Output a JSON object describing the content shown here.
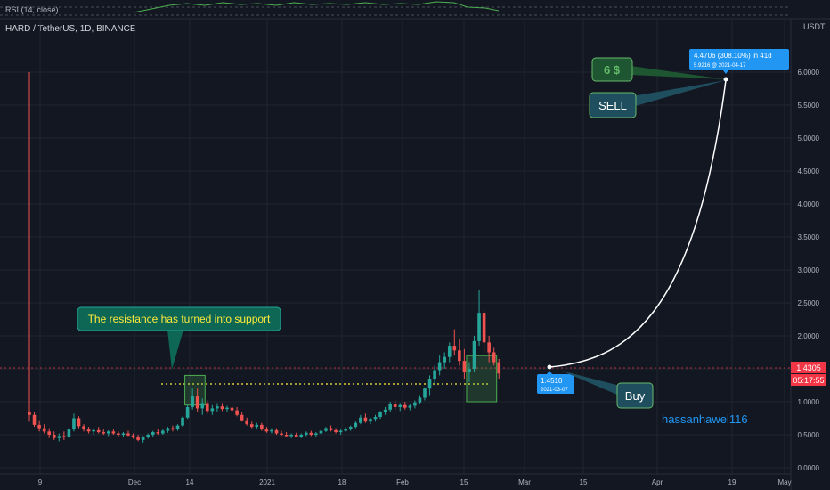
{
  "rsi_label": "RSI (14, close)",
  "symbol_title": "HARD / TetherUS, 1D, BINANCE",
  "currency": "USDT",
  "price_ticks": [
    "6.0000",
    "5.5000",
    "5.0000",
    "4.5000",
    "4.0000",
    "3.5000",
    "3.0000",
    "2.5000",
    "2.0000",
    "1.5000",
    "1.0000",
    "0.5000",
    "0.0000"
  ],
  "time_ticks": [
    "9",
    "Dec",
    "14",
    "2021",
    "18",
    "Feb",
    "15",
    "Mar",
    "15",
    "Apr",
    "19",
    "May"
  ],
  "current_price": "1.4305",
  "countdown": "05:17:55",
  "annotations": {
    "resistance_note": "The resistance has turned into support",
    "target_label": "6 $",
    "sell_label": "SELL",
    "buy_label": "Buy",
    "author": "hassanhawel116",
    "measure_top_line1": "4.4706 (308.10%) in 41d",
    "measure_top_line2": "5.9216 @ 2021-04-17",
    "measure_bottom_line1": "1.4510",
    "measure_bottom_line2": "2021-03-07"
  },
  "colors": {
    "background": "#131722",
    "up": "#26a69a",
    "down": "#ef5350",
    "box_green": "#4caf50",
    "callout_teal": "#0e6655",
    "note_text": "#ffeb3b",
    "measure_blue": "#2196f3",
    "current_price": "#f23645"
  },
  "chart_data": {
    "type": "candlestick",
    "title": "HARD / TetherUS, 1D, BINANCE",
    "ylim": [
      0,
      6.6
    ],
    "grid": true,
    "resistance_level": 1.2,
    "candles": [
      {
        "o": 0.85,
        "h": 6.0,
        "l": 0.7,
        "c": 0.8
      },
      {
        "o": 0.8,
        "h": 0.85,
        "l": 0.62,
        "c": 0.65
      },
      {
        "o": 0.65,
        "h": 0.72,
        "l": 0.55,
        "c": 0.6
      },
      {
        "o": 0.6,
        "h": 0.66,
        "l": 0.52,
        "c": 0.55
      },
      {
        "o": 0.55,
        "h": 0.6,
        "l": 0.45,
        "c": 0.5
      },
      {
        "o": 0.5,
        "h": 0.55,
        "l": 0.42,
        "c": 0.45
      },
      {
        "o": 0.45,
        "h": 0.52,
        "l": 0.4,
        "c": 0.48
      },
      {
        "o": 0.48,
        "h": 0.55,
        "l": 0.42,
        "c": 0.46
      },
      {
        "o": 0.46,
        "h": 0.6,
        "l": 0.44,
        "c": 0.58
      },
      {
        "o": 0.58,
        "h": 0.82,
        "l": 0.55,
        "c": 0.75
      },
      {
        "o": 0.75,
        "h": 0.78,
        "l": 0.6,
        "c": 0.63
      },
      {
        "o": 0.63,
        "h": 0.66,
        "l": 0.55,
        "c": 0.58
      },
      {
        "o": 0.58,
        "h": 0.62,
        "l": 0.52,
        "c": 0.55
      },
      {
        "o": 0.55,
        "h": 0.6,
        "l": 0.5,
        "c": 0.57
      },
      {
        "o": 0.57,
        "h": 0.62,
        "l": 0.52,
        "c": 0.54
      },
      {
        "o": 0.54,
        "h": 0.58,
        "l": 0.5,
        "c": 0.52
      },
      {
        "o": 0.52,
        "h": 0.57,
        "l": 0.48,
        "c": 0.55
      },
      {
        "o": 0.55,
        "h": 0.58,
        "l": 0.5,
        "c": 0.52
      },
      {
        "o": 0.52,
        "h": 0.55,
        "l": 0.47,
        "c": 0.5
      },
      {
        "o": 0.5,
        "h": 0.54,
        "l": 0.46,
        "c": 0.52
      },
      {
        "o": 0.52,
        "h": 0.56,
        "l": 0.48,
        "c": 0.49
      },
      {
        "o": 0.49,
        "h": 0.52,
        "l": 0.44,
        "c": 0.47
      },
      {
        "o": 0.47,
        "h": 0.5,
        "l": 0.4,
        "c": 0.42
      },
      {
        "o": 0.42,
        "h": 0.48,
        "l": 0.38,
        "c": 0.46
      },
      {
        "o": 0.46,
        "h": 0.52,
        "l": 0.44,
        "c": 0.5
      },
      {
        "o": 0.5,
        "h": 0.56,
        "l": 0.47,
        "c": 0.54
      },
      {
        "o": 0.54,
        "h": 0.58,
        "l": 0.5,
        "c": 0.52
      },
      {
        "o": 0.52,
        "h": 0.58,
        "l": 0.5,
        "c": 0.56
      },
      {
        "o": 0.56,
        "h": 0.62,
        "l": 0.53,
        "c": 0.6
      },
      {
        "o": 0.6,
        "h": 0.64,
        "l": 0.55,
        "c": 0.58
      },
      {
        "o": 0.58,
        "h": 0.66,
        "l": 0.56,
        "c": 0.64
      },
      {
        "o": 0.64,
        "h": 0.78,
        "l": 0.62,
        "c": 0.76
      },
      {
        "o": 0.76,
        "h": 0.95,
        "l": 0.74,
        "c": 0.92
      },
      {
        "o": 0.92,
        "h": 1.2,
        "l": 0.88,
        "c": 1.08
      },
      {
        "o": 1.08,
        "h": 1.2,
        "l": 0.85,
        "c": 0.9
      },
      {
        "o": 0.9,
        "h": 1.05,
        "l": 0.8,
        "c": 0.98
      },
      {
        "o": 0.98,
        "h": 1.02,
        "l": 0.82,
        "c": 0.86
      },
      {
        "o": 0.86,
        "h": 0.95,
        "l": 0.8,
        "c": 0.9
      },
      {
        "o": 0.9,
        "h": 0.98,
        "l": 0.85,
        "c": 0.93
      },
      {
        "o": 0.93,
        "h": 0.98,
        "l": 0.86,
        "c": 0.89
      },
      {
        "o": 0.89,
        "h": 0.94,
        "l": 0.84,
        "c": 0.91
      },
      {
        "o": 0.91,
        "h": 0.96,
        "l": 0.85,
        "c": 0.87
      },
      {
        "o": 0.87,
        "h": 0.92,
        "l": 0.78,
        "c": 0.8
      },
      {
        "o": 0.8,
        "h": 0.84,
        "l": 0.7,
        "c": 0.72
      },
      {
        "o": 0.72,
        "h": 0.76,
        "l": 0.64,
        "c": 0.66
      },
      {
        "o": 0.66,
        "h": 0.7,
        "l": 0.6,
        "c": 0.62
      },
      {
        "o": 0.62,
        "h": 0.68,
        "l": 0.58,
        "c": 0.65
      },
      {
        "o": 0.65,
        "h": 0.68,
        "l": 0.56,
        "c": 0.58
      },
      {
        "o": 0.58,
        "h": 0.62,
        "l": 0.53,
        "c": 0.55
      },
      {
        "o": 0.55,
        "h": 0.6,
        "l": 0.52,
        "c": 0.57
      },
      {
        "o": 0.57,
        "h": 0.6,
        "l": 0.5,
        "c": 0.52
      },
      {
        "o": 0.52,
        "h": 0.56,
        "l": 0.48,
        "c": 0.5
      },
      {
        "o": 0.5,
        "h": 0.54,
        "l": 0.46,
        "c": 0.48
      },
      {
        "o": 0.48,
        "h": 0.52,
        "l": 0.45,
        "c": 0.5
      },
      {
        "o": 0.5,
        "h": 0.53,
        "l": 0.46,
        "c": 0.47
      },
      {
        "o": 0.47,
        "h": 0.52,
        "l": 0.45,
        "c": 0.5
      },
      {
        "o": 0.5,
        "h": 0.55,
        "l": 0.48,
        "c": 0.53
      },
      {
        "o": 0.53,
        "h": 0.56,
        "l": 0.48,
        "c": 0.5
      },
      {
        "o": 0.5,
        "h": 0.54,
        "l": 0.47,
        "c": 0.52
      },
      {
        "o": 0.52,
        "h": 0.58,
        "l": 0.5,
        "c": 0.56
      },
      {
        "o": 0.56,
        "h": 0.62,
        "l": 0.54,
        "c": 0.6
      },
      {
        "o": 0.6,
        "h": 0.64,
        "l": 0.55,
        "c": 0.57
      },
      {
        "o": 0.57,
        "h": 0.6,
        "l": 0.52,
        "c": 0.54
      },
      {
        "o": 0.54,
        "h": 0.58,
        "l": 0.5,
        "c": 0.56
      },
      {
        "o": 0.56,
        "h": 0.62,
        "l": 0.54,
        "c": 0.59
      },
      {
        "o": 0.59,
        "h": 0.64,
        "l": 0.56,
        "c": 0.62
      },
      {
        "o": 0.62,
        "h": 0.7,
        "l": 0.6,
        "c": 0.68
      },
      {
        "o": 0.68,
        "h": 0.8,
        "l": 0.66,
        "c": 0.76
      },
      {
        "o": 0.76,
        "h": 0.82,
        "l": 0.68,
        "c": 0.7
      },
      {
        "o": 0.7,
        "h": 0.76,
        "l": 0.66,
        "c": 0.74
      },
      {
        "o": 0.74,
        "h": 0.8,
        "l": 0.7,
        "c": 0.77
      },
      {
        "o": 0.77,
        "h": 0.86,
        "l": 0.74,
        "c": 0.84
      },
      {
        "o": 0.84,
        "h": 0.92,
        "l": 0.8,
        "c": 0.88
      },
      {
        "o": 0.88,
        "h": 1.0,
        "l": 0.85,
        "c": 0.96
      },
      {
        "o": 0.96,
        "h": 1.02,
        "l": 0.88,
        "c": 0.92
      },
      {
        "o": 0.92,
        "h": 0.98,
        "l": 0.86,
        "c": 0.95
      },
      {
        "o": 0.95,
        "h": 1.0,
        "l": 0.88,
        "c": 0.91
      },
      {
        "o": 0.91,
        "h": 0.97,
        "l": 0.87,
        "c": 0.94
      },
      {
        "o": 0.94,
        "h": 1.02,
        "l": 0.9,
        "c": 0.99
      },
      {
        "o": 0.99,
        "h": 1.1,
        "l": 0.96,
        "c": 1.06
      },
      {
        "o": 1.06,
        "h": 1.22,
        "l": 1.02,
        "c": 1.2
      },
      {
        "o": 1.2,
        "h": 1.4,
        "l": 1.1,
        "c": 1.35
      },
      {
        "o": 1.35,
        "h": 1.55,
        "l": 1.25,
        "c": 1.48
      },
      {
        "o": 1.48,
        "h": 1.7,
        "l": 1.4,
        "c": 1.6
      },
      {
        "o": 1.6,
        "h": 1.75,
        "l": 1.5,
        "c": 1.68
      },
      {
        "o": 1.68,
        "h": 1.9,
        "l": 1.6,
        "c": 1.85
      },
      {
        "o": 1.85,
        "h": 2.1,
        "l": 1.7,
        "c": 1.78
      },
      {
        "o": 1.78,
        "h": 1.95,
        "l": 1.55,
        "c": 1.62
      },
      {
        "o": 1.62,
        "h": 1.8,
        "l": 1.35,
        "c": 1.45
      },
      {
        "o": 1.45,
        "h": 1.6,
        "l": 1.3,
        "c": 1.5
      },
      {
        "o": 1.5,
        "h": 2.0,
        "l": 1.45,
        "c": 1.92
      },
      {
        "o": 1.92,
        "h": 2.7,
        "l": 1.85,
        "c": 2.35
      },
      {
        "o": 2.35,
        "h": 2.4,
        "l": 1.75,
        "c": 1.9
      },
      {
        "o": 1.9,
        "h": 2.0,
        "l": 1.6,
        "c": 1.75
      },
      {
        "o": 1.75,
        "h": 1.82,
        "l": 1.55,
        "c": 1.6
      },
      {
        "o": 1.6,
        "h": 1.65,
        "l": 1.35,
        "c": 1.43
      }
    ],
    "boxes": [
      {
        "start": 32,
        "end": 35,
        "low": 0.95,
        "high": 1.4
      },
      {
        "start": 89,
        "end": 94,
        "low": 1.0,
        "high": 1.7
      }
    ],
    "measure": {
      "from_price": 1.451,
      "from_date": "2021-03-07",
      "to_price": 5.9216,
      "to_date": "2021-04-17",
      "change": 4.4706,
      "change_pct": 308.1,
      "bars": 41
    }
  }
}
